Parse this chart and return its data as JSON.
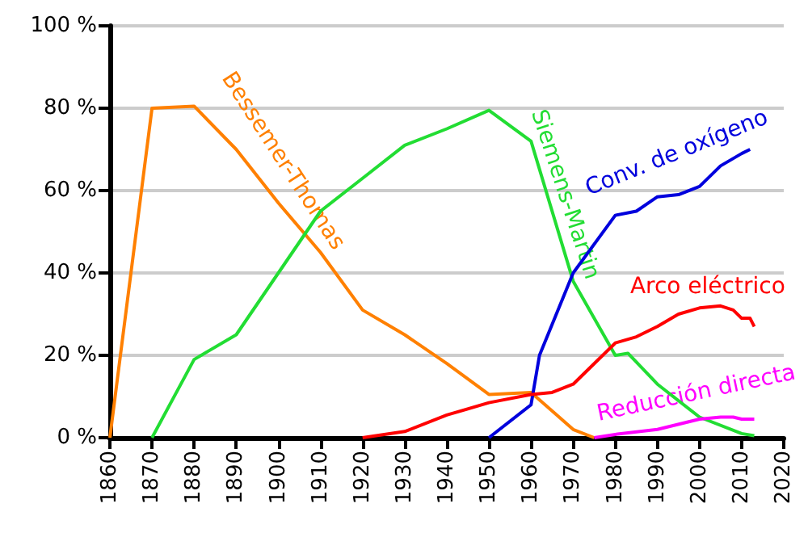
{
  "chart_data": {
    "type": "line",
    "grid": "y",
    "legend": false,
    "marker": "none",
    "line_style": "solid",
    "xlim": [
      1860,
      2020
    ],
    "xticks": [
      1860,
      1870,
      1880,
      1890,
      1900,
      1910,
      1920,
      1930,
      1940,
      1950,
      1960,
      1970,
      1980,
      1990,
      2000,
      2010,
      2020
    ],
    "ylim": [
      0,
      100
    ],
    "yticks": [
      {
        "value": 0,
        "label": "0 %"
      },
      {
        "value": 20,
        "label": "20 %"
      },
      {
        "value": 40,
        "label": "40 %"
      },
      {
        "value": 60,
        "label": "60 %"
      },
      {
        "value": 80,
        "label": "80 %"
      },
      {
        "value": 100,
        "label": "100 %"
      }
    ],
    "series": [
      {
        "name": "Bessemer-Thomas",
        "color": "#ff8000",
        "x": [
          1860,
          1870,
          1880,
          1890,
          1900,
          1910,
          1920,
          1930,
          1940,
          1950,
          1960,
          1970,
          1975
        ],
        "values": [
          0,
          80,
          80.5,
          70,
          57,
          45,
          31,
          25,
          18,
          10.5,
          11,
          2,
          0
        ]
      },
      {
        "name": "Siemens-Martin",
        "color": "#22dd33",
        "x": [
          1870,
          1880,
          1890,
          1900,
          1910,
          1920,
          1930,
          1940,
          1950,
          1960,
          1970,
          1980,
          1983,
          1990,
          2000,
          2010,
          2013
        ],
        "values": [
          0,
          19,
          25,
          40,
          55,
          63,
          71,
          75,
          79.5,
          72,
          38,
          20,
          20.5,
          13,
          5,
          1,
          0.5
        ]
      },
      {
        "name": "Conv. de oxígeno",
        "color": "#0000dd",
        "x": [
          1950,
          1960,
          1962,
          1970,
          1980,
          1985,
          1990,
          1995,
          2000,
          2005,
          2010,
          2012
        ],
        "values": [
          0,
          8,
          20,
          40,
          54,
          55,
          58.5,
          59,
          61,
          66,
          69,
          70
        ]
      },
      {
        "name": "Arco eléctrico",
        "color": "#ff0000",
        "x": [
          1920,
          1930,
          1940,
          1950,
          1960,
          1965,
          1970,
          1975,
          1980,
          1985,
          1990,
          1995,
          2000,
          2005,
          2008,
          2010,
          2012,
          2013
        ],
        "values": [
          0,
          1.5,
          5.5,
          8.5,
          10.5,
          11,
          13,
          18,
          23,
          24.5,
          27,
          30,
          31.5,
          32,
          31,
          29,
          29,
          27
        ]
      },
      {
        "name": "Reducción directa",
        "color": "#ff00ff",
        "x": [
          1975,
          1980,
          1990,
          2000,
          2005,
          2008,
          2010,
          2013
        ],
        "values": [
          0,
          0.8,
          2,
          4.5,
          5,
          5,
          4.5,
          4.5
        ]
      }
    ]
  }
}
